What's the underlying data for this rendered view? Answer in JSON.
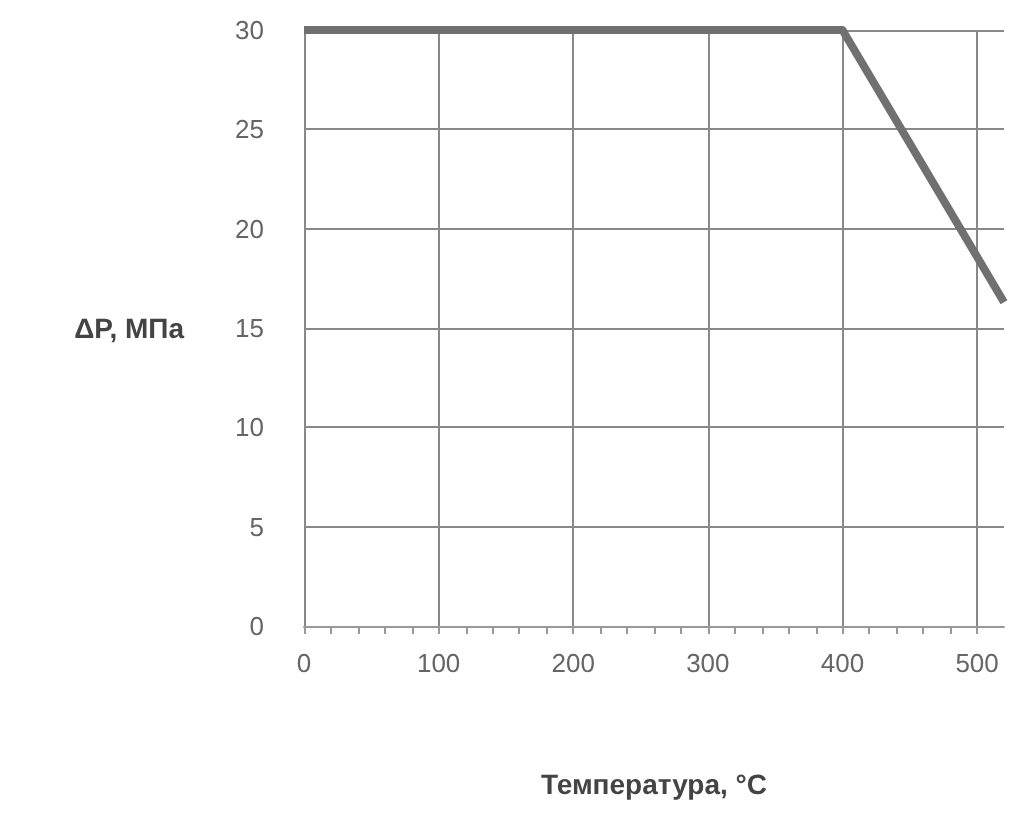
{
  "chart_data": {
    "type": "line",
    "xlabel": "Температура, °C",
    "ylabel": "ΔP, МПа",
    "x": [
      0,
      400,
      520
    ],
    "series": [
      {
        "color": "#707070",
        "values": [
          30,
          30,
          16.3
        ]
      }
    ],
    "xlim": [
      0,
      520
    ],
    "xticks": [
      0,
      100,
      200,
      300,
      400,
      500
    ],
    "ylim": [
      0,
      30
    ],
    "yticks": [
      0,
      5,
      10,
      15,
      20,
      25,
      30
    ],
    "grid": true,
    "marker": "none",
    "line_style": "solid"
  }
}
